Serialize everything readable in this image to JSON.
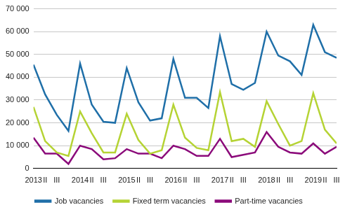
{
  "chart_data": {
    "type": "line",
    "categories": [
      "2013",
      "II",
      "III",
      null,
      "2014",
      "II",
      "III",
      null,
      "2015",
      "II",
      "III",
      null,
      "2016",
      "II",
      "III",
      null,
      "2017",
      "II",
      "III",
      null,
      "2018",
      "II",
      "III",
      null,
      "2019",
      "II",
      "III"
    ],
    "series": [
      {
        "name": "Job vacancies",
        "color": "#1f6fa8",
        "values": [
          45500,
          32500,
          23500,
          16500,
          46000,
          28000,
          20500,
          20000,
          44000,
          29000,
          21000,
          22000,
          48000,
          31000,
          31000,
          26500,
          58000,
          37000,
          34500,
          37500,
          60000,
          49500,
          47000,
          41000,
          63000,
          51000,
          48500
        ]
      },
      {
        "name": "Fixed term vacancies",
        "color": "#b5d334",
        "values": [
          27000,
          12000,
          7000,
          5500,
          25000,
          15500,
          7000,
          7000,
          24000,
          12500,
          6500,
          8000,
          28000,
          13500,
          9000,
          8000,
          33500,
          12000,
          13000,
          9500,
          29500,
          19500,
          10000,
          12000,
          33000,
          17000,
          11000
        ]
      },
      {
        "name": "Part-time vacancies",
        "color": "#8b0a7a",
        "values": [
          13500,
          6500,
          6500,
          2000,
          10000,
          8500,
          4000,
          4500,
          8500,
          6500,
          6500,
          4500,
          10000,
          8500,
          5500,
          5500,
          13000,
          5000,
          6000,
          7000,
          16000,
          9500,
          7000,
          6500,
          11000,
          6500,
          9500
        ]
      }
    ],
    "ylim": [
      0,
      70000
    ],
    "yticks": [
      0,
      {
        "value": 10000,
        "label": "10 000"
      },
      {
        "value": 20000,
        "label": "20 000"
      },
      {
        "value": 30000,
        "label": "30 000"
      },
      {
        "value": 40000,
        "label": "40 000"
      },
      {
        "value": 50000,
        "label": "50 000"
      },
      {
        "value": 60000,
        "label": "60 000"
      },
      {
        "value": 70000,
        "label": "70 000"
      }
    ],
    "grid": true,
    "legend": "bottom"
  }
}
